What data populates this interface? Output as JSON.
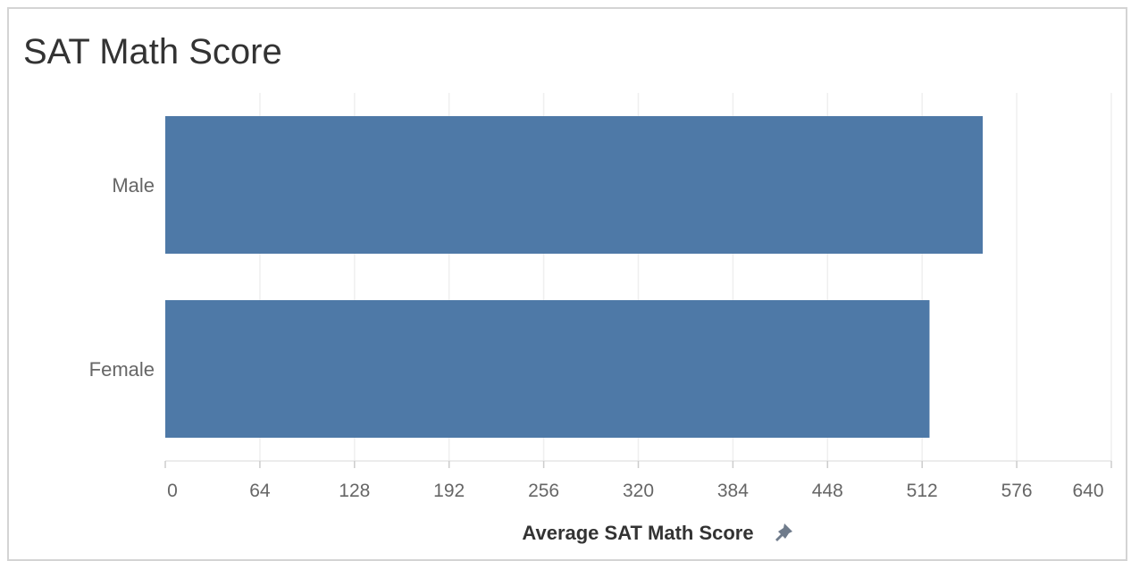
{
  "title": "SAT Math Score",
  "chart_data": {
    "type": "bar",
    "orientation": "horizontal",
    "categories": [
      "Male",
      "Female"
    ],
    "values": [
      553,
      517
    ],
    "xlabel": "Average SAT Math Score",
    "ylabel": "",
    "xlim": [
      0,
      640
    ],
    "ticks": [
      0,
      64,
      128,
      192,
      256,
      320,
      384,
      448,
      512,
      576,
      640
    ],
    "grid": true,
    "bar_color": "#4e79a7",
    "grid_color": "#efefef"
  },
  "icons": {
    "axis_title_icon": "pin-icon"
  }
}
